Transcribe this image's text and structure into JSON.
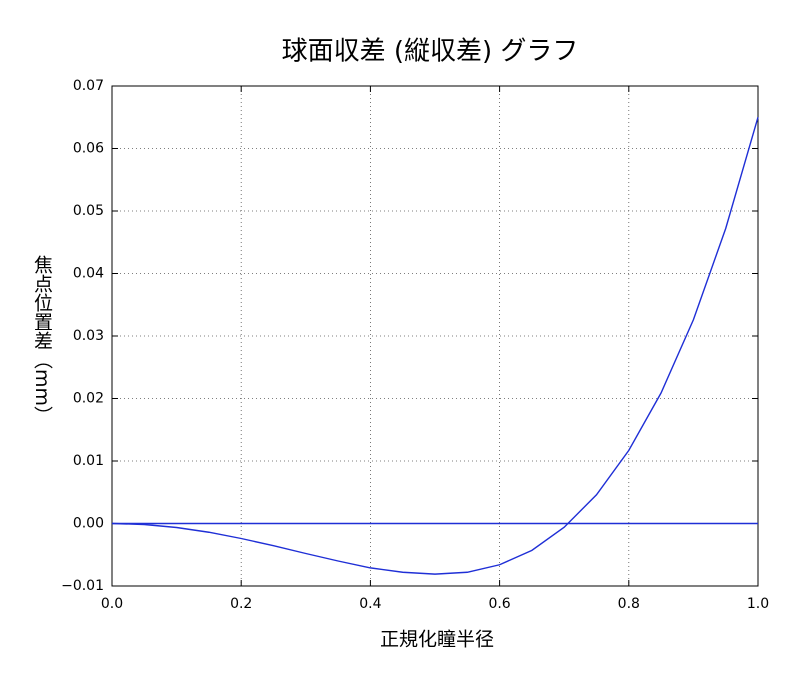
{
  "chart_data": {
    "type": "line",
    "title": "球面収差 (縦収差) グラフ",
    "x_label": "正規化瞳半径",
    "y_label": "焦点位置差（mm）",
    "series": [
      {
        "color": "#1f2fd6",
        "x": [
          0,
          0.05,
          0.1,
          0.15,
          0.2,
          0.25,
          0.3,
          0.35,
          0.4,
          0.45,
          0.5,
          0.55,
          0.6,
          0.65,
          0.7,
          0.75,
          0.8,
          0.85,
          0.9,
          0.95,
          1.0
        ],
        "values": [
          0,
          -0.00016,
          -0.00064,
          -0.0014,
          -0.0024,
          -0.00355,
          -0.0048,
          -0.006,
          -0.0071,
          -0.0078,
          -0.0081,
          -0.0078,
          -0.0066,
          -0.0043,
          -0.0006,
          0.0046,
          0.0117,
          0.0209,
          0.0326,
          0.0472,
          0.065
        ]
      },
      {
        "color": "#1f2fd6",
        "x": [
          0,
          1.0
        ],
        "values": [
          0,
          0
        ]
      }
    ],
    "xlim": [
      0,
      1.0
    ],
    "xticks": [
      {
        "value": 0,
        "label": "0.0"
      },
      0.2,
      0.4,
      0.6,
      0.8,
      {
        "value": 1.0,
        "label": "1.0"
      }
    ],
    "ylim": [
      -0.01,
      0.07
    ],
    "yticks": [
      {
        "value": -0.01,
        "label": "−0.01"
      },
      {
        "value": 0,
        "label": "0.00"
      },
      0.01,
      0.02,
      0.03,
      0.04,
      0.05,
      0.06,
      0.07
    ],
    "grid": true
  }
}
